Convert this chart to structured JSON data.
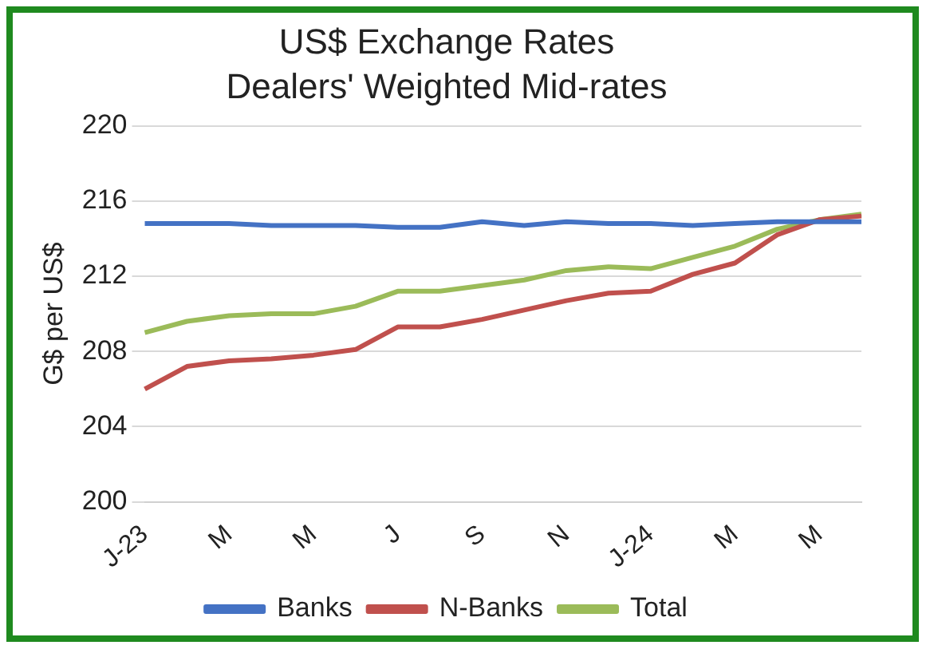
{
  "chart_data": {
    "type": "line",
    "title": "US$ Exchange Rates",
    "subtitle": "Dealers' Weighted Mid-rates",
    "ylabel": "G$ per US$",
    "categories": [
      "J-23",
      null,
      "M",
      null,
      "M",
      null,
      "J",
      null,
      "S",
      null,
      "N",
      null,
      "J-24",
      null,
      "M",
      null,
      "M",
      null
    ],
    "series": [
      {
        "name": "Banks",
        "color": "#4472c4",
        "values": [
          214.8,
          214.8,
          214.8,
          214.7,
          214.7,
          214.7,
          214.6,
          214.6,
          214.9,
          214.7,
          214.9,
          214.8,
          214.8,
          214.7,
          214.8,
          214.9,
          214.9,
          214.9
        ]
      },
      {
        "name": "N-Banks",
        "color": "#c0504d",
        "values": [
          206.0,
          207.2,
          207.5,
          207.6,
          207.8,
          208.1,
          209.3,
          209.3,
          209.7,
          210.2,
          210.7,
          211.1,
          211.2,
          212.1,
          212.7,
          214.2,
          215.0,
          215.2
        ]
      },
      {
        "name": "Total",
        "color": "#9bbb59",
        "values": [
          209.0,
          209.6,
          209.9,
          210.0,
          210.0,
          210.4,
          211.2,
          211.2,
          211.5,
          211.8,
          212.3,
          212.5,
          212.4,
          213.0,
          213.6,
          214.5,
          215.0,
          215.3
        ]
      }
    ],
    "ylim": [
      200,
      220
    ],
    "yticks": [
      200,
      204,
      208,
      212,
      216,
      220
    ],
    "grid": "y",
    "legend": "bottom",
    "marker": "none",
    "line_style": "solid"
  }
}
